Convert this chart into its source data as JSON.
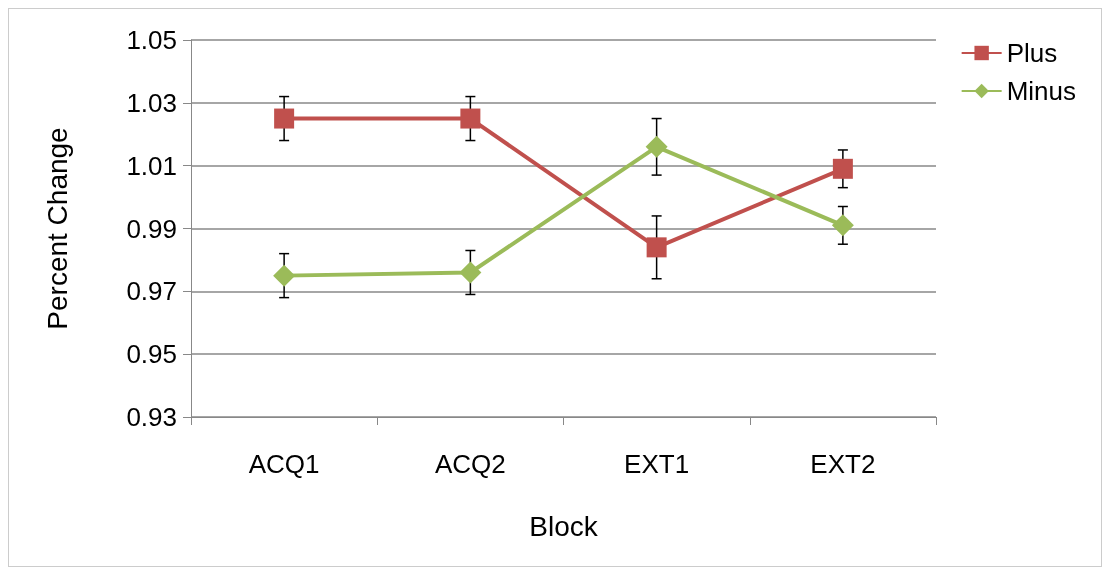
{
  "chart_data": {
    "type": "line",
    "xlabel": "Block",
    "ylabel": "Percent Change",
    "categories": [
      "ACQ1",
      "ACQ2",
      "EXT1",
      "EXT2"
    ],
    "series": [
      {
        "name": "Plus",
        "color": "#c0504d",
        "marker": "square",
        "values": [
          1.025,
          1.025,
          0.984,
          1.009
        ],
        "errors": [
          0.007,
          0.007,
          0.01,
          0.006
        ]
      },
      {
        "name": "Minus",
        "color": "#9bbb59",
        "marker": "diamond",
        "values": [
          0.975,
          0.976,
          1.016,
          0.991
        ],
        "errors": [
          0.007,
          0.007,
          0.009,
          0.006
        ]
      }
    ],
    "ylim": [
      0.93,
      1.05
    ],
    "yticks": [
      0.93,
      0.95,
      0.97,
      0.99,
      1.01,
      1.03,
      1.05
    ],
    "grid": "y",
    "legend": "top right",
    "line_style": "solid"
  }
}
